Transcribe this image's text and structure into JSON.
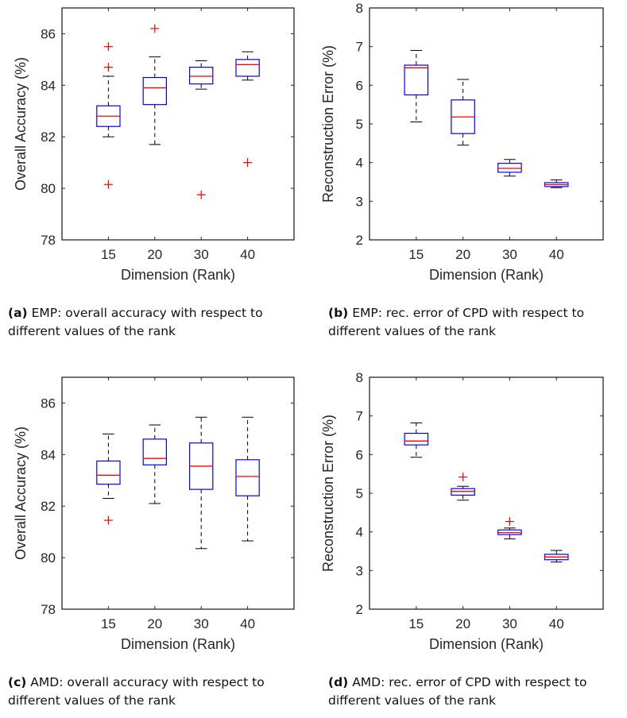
{
  "chart_data": [
    {
      "id": "a",
      "type": "box",
      "xlabel": "Dimension (Rank)",
      "ylabel": "Overall Accuracy (%)",
      "categories": [
        "15",
        "20",
        "30",
        "40"
      ],
      "ylim": [
        78,
        87
      ],
      "yticks": [
        78,
        80,
        82,
        84,
        86
      ],
      "boxes": [
        {
          "whisker_low": 82.0,
          "q1": 82.4,
          "median": 82.8,
          "q3": 83.2,
          "whisker_high": 84.35,
          "outliers": [
            80.15,
            84.7,
            85.5
          ]
        },
        {
          "whisker_low": 81.7,
          "q1": 83.25,
          "median": 83.9,
          "q3": 84.3,
          "whisker_high": 85.1,
          "outliers": [
            86.2
          ]
        },
        {
          "whisker_low": 83.85,
          "q1": 84.05,
          "median": 84.35,
          "q3": 84.7,
          "whisker_high": 84.95,
          "outliers": [
            79.75
          ]
        },
        {
          "whisker_low": 84.2,
          "q1": 84.35,
          "median": 84.8,
          "q3": 85.0,
          "whisker_high": 85.3,
          "outliers": [
            81.0
          ]
        }
      ],
      "caption_tag": "(a)",
      "caption_text": "EMP: overall accuracy with respect to different values of the rank"
    },
    {
      "id": "b",
      "type": "box",
      "xlabel": "Dimension (Rank)",
      "ylabel": "Reconstruction Error (%)",
      "categories": [
        "15",
        "20",
        "30",
        "40"
      ],
      "ylim": [
        2,
        8
      ],
      "yticks": [
        2,
        3,
        4,
        5,
        6,
        7,
        8
      ],
      "boxes": [
        {
          "whisker_low": 5.05,
          "q1": 5.75,
          "median": 6.45,
          "q3": 6.52,
          "whisker_high": 6.9,
          "outliers": []
        },
        {
          "whisker_low": 4.45,
          "q1": 4.75,
          "median": 5.18,
          "q3": 5.62,
          "whisker_high": 6.15,
          "outliers": []
        },
        {
          "whisker_low": 3.65,
          "q1": 3.75,
          "median": 3.85,
          "q3": 3.98,
          "whisker_high": 4.08,
          "outliers": []
        },
        {
          "whisker_low": 3.35,
          "q1": 3.38,
          "median": 3.43,
          "q3": 3.48,
          "whisker_high": 3.55,
          "outliers": []
        }
      ],
      "caption_tag": "(b)",
      "caption_text": "EMP: rec. error of CPD with respect to different values of the rank"
    },
    {
      "id": "c",
      "type": "box",
      "xlabel": "Dimension (Rank)",
      "ylabel": "Overall Accuracy (%)",
      "categories": [
        "15",
        "20",
        "30",
        "40"
      ],
      "ylim": [
        78,
        87
      ],
      "yticks": [
        78,
        80,
        82,
        84,
        86
      ],
      "boxes": [
        {
          "whisker_low": 82.3,
          "q1": 82.85,
          "median": 83.2,
          "q3": 83.75,
          "whisker_high": 84.8,
          "outliers": [
            81.45
          ]
        },
        {
          "whisker_low": 82.1,
          "q1": 83.6,
          "median": 83.85,
          "q3": 84.6,
          "whisker_high": 85.15,
          "outliers": []
        },
        {
          "whisker_low": 80.35,
          "q1": 82.65,
          "median": 83.55,
          "q3": 84.45,
          "whisker_high": 85.45,
          "outliers": []
        },
        {
          "whisker_low": 80.65,
          "q1": 82.4,
          "median": 83.15,
          "q3": 83.8,
          "whisker_high": 85.45,
          "outliers": []
        }
      ],
      "caption_tag": "(c)",
      "caption_text": "AMD: overall accuracy with respect to different values of the rank"
    },
    {
      "id": "d",
      "type": "box",
      "xlabel": "Dimension (Rank)",
      "ylabel": "Reconstruction Error (%)",
      "categories": [
        "15",
        "20",
        "30",
        "40"
      ],
      "ylim": [
        2,
        8
      ],
      "yticks": [
        2,
        3,
        4,
        5,
        6,
        7,
        8
      ],
      "boxes": [
        {
          "whisker_low": 5.93,
          "q1": 6.25,
          "median": 6.35,
          "q3": 6.55,
          "whisker_high": 6.82,
          "outliers": []
        },
        {
          "whisker_low": 4.82,
          "q1": 4.95,
          "median": 5.05,
          "q3": 5.12,
          "whisker_high": 5.18,
          "outliers": [
            5.42
          ]
        },
        {
          "whisker_low": 3.82,
          "q1": 3.93,
          "median": 3.98,
          "q3": 4.05,
          "whisker_high": 4.1,
          "outliers": [
            4.27
          ]
        },
        {
          "whisker_low": 3.22,
          "q1": 3.28,
          "median": 3.35,
          "q3": 3.42,
          "whisker_high": 3.52,
          "outliers": []
        }
      ],
      "caption_tag": "(d)",
      "caption_text": "AMD: rec. error of CPD with respect to different values of the rank"
    }
  ],
  "colors": {
    "box": "#0000ff",
    "median": "#ff0000",
    "outlier": "#ff0000",
    "whisker": "#000000",
    "axis": "#262626"
  }
}
